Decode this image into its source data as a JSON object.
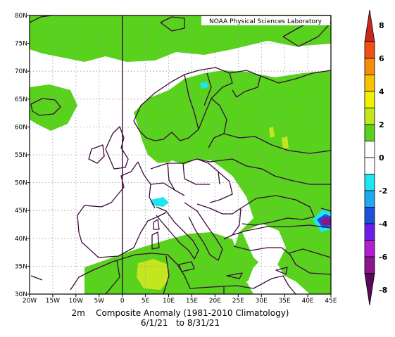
{
  "credit": "NOAA Physical Sciences Laboratory",
  "caption": {
    "line1": "2m    Composite Anomaly (1981-2010 Climatology)",
    "line2": "6/1/21   to 8/31/21"
  },
  "map": {
    "lon_range": [
      -20,
      45
    ],
    "lat_range": [
      30,
      80
    ],
    "lon_ticks": [
      "20W",
      "15W",
      "10W",
      "5W",
      "0",
      "5E",
      "10E",
      "15E",
      "20E",
      "25E",
      "30E",
      "35E",
      "40E",
      "45E"
    ],
    "lat_ticks": [
      "30N",
      "35N",
      "40N",
      "45N",
      "50N",
      "55N",
      "60N",
      "65N",
      "70N",
      "75N",
      "80N"
    ],
    "gridlines": true,
    "projection": "cylindrical"
  },
  "colorbar": {
    "labels": [
      "8",
      "6",
      "4",
      "2",
      "0",
      "-2",
      "-4",
      "-6",
      "-8"
    ],
    "colors": {
      "8": "#c8281e",
      "7": "#f05014",
      "6": "#f58c0a",
      "5": "#f5c300",
      "4": "#f0f000",
      "3": "#c3e61e",
      "2": "#58d21c",
      "1": "#ffffff",
      "-1": "#ffffff",
      "-2": "#1ee6f0",
      "-3": "#1eaaf0",
      "-4": "#1e50dc",
      "-5": "#6a1eea",
      "-6": "#b41ed2",
      "-7": "#8c148c",
      "-8": "#5a0a5a"
    }
  },
  "colors": {
    "land_outline": "#3c0a3c",
    "anomaly_green": "#58d21c",
    "neutral_white": "#ffffff",
    "warm_yellow": "#c3e61e",
    "cool_cyan": "#1ee6f0"
  }
}
